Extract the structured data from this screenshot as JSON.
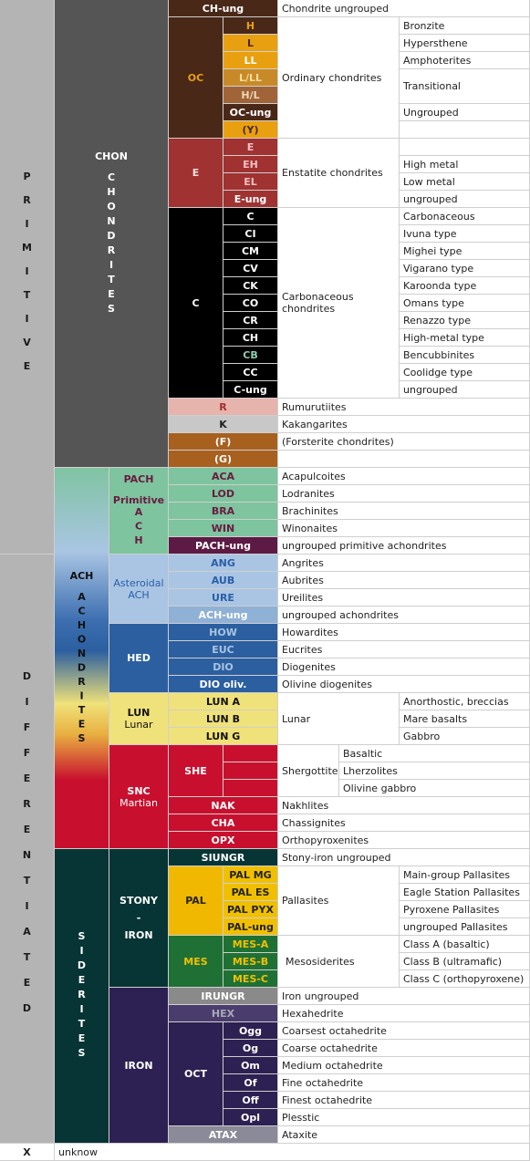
{
  "divisions": [
    {
      "name": "PRIMITIVE"
    },
    {
      "name": "DIFFERENTIATED"
    },
    {
      "code": "X",
      "name": "unknow"
    }
  ],
  "classes": [
    {
      "code": "CHON",
      "name": "CHONDRITES"
    },
    {
      "code": "ACH",
      "name": "ACHONDRITES"
    },
    {
      "name": "SIDERITES"
    }
  ],
  "clans": [
    {
      "code": "PACH",
      "name": "Primitive",
      "abbr": "ACH"
    },
    {
      "name": "Asteroidal",
      "abbr": "ACH"
    },
    {
      "code": "HED"
    },
    {
      "code": "LUN",
      "name": "Lunar"
    },
    {
      "code": "SNC",
      "name": "Martian"
    },
    {
      "code": "STONY",
      "sep": "-",
      "name": "IRON"
    },
    {
      "code": "IRON"
    }
  ],
  "groups": [
    {
      "code": "CH-ung",
      "name": "Chondrite ungrouped"
    },
    {
      "code": "OC",
      "name": "Ordinary chondrites",
      "types": [
        "H",
        "L",
        "LL",
        "L/LL",
        "H/L",
        "OC-ung",
        "(Y)"
      ],
      "descriptions": [
        "Bronzite",
        "Hypersthene",
        "Amphoterites",
        "Transitional",
        "Ungrouped"
      ]
    },
    {
      "code": "E",
      "name": "Enstatite chondrites",
      "types": [
        "E",
        "EH",
        "EL",
        "E-ung"
      ],
      "descriptions": [
        "High metal",
        "Low metal",
        "ungrouped"
      ]
    },
    {
      "code": "C",
      "name": "Carbonaceous chondrites",
      "types": [
        "C",
        "CI",
        "CM",
        "CV",
        "CK",
        "CO",
        "CR",
        "CH",
        "CB",
        "CC",
        "C-ung"
      ],
      "descriptions": [
        "Carbonaceous",
        "Ivuna type",
        "Mighei type",
        "Vigarano type",
        "Karoonda type",
        "Omans type",
        "Renazzo type",
        "High-metal type",
        "Bencubbinites",
        "Coolidge type",
        "ungrouped"
      ]
    },
    {
      "code": "R",
      "name": "Rumurutiites"
    },
    {
      "code": "K",
      "name": "Kakangarites"
    },
    {
      "code": "(F)",
      "name": "(Forsterite chondrites)"
    },
    {
      "code": "(G)"
    },
    {
      "code": "ACA",
      "name": "Acapulcoites"
    },
    {
      "code": "LOD",
      "name": "Lodranites"
    },
    {
      "code": "BRA",
      "name": "Brachinites"
    },
    {
      "code": "WIN",
      "name": "Winonaites"
    },
    {
      "code": "PACH-ung",
      "name": "ungrouped primitive achondrites"
    },
    {
      "code": "ANG",
      "name": "Angrites"
    },
    {
      "code": "AUB",
      "name": "Aubrites"
    },
    {
      "code": "URE",
      "name": "Ureilites"
    },
    {
      "code": "ACH-ung",
      "name": "ungrouped achondrites"
    },
    {
      "code": "HOW",
      "name": "Howardites"
    },
    {
      "code": "EUC",
      "name": "Eucrites"
    },
    {
      "code": "DIO",
      "name": "Diogenites"
    },
    {
      "code": "DIO oliv.",
      "name": "Olivine diogenites"
    },
    {
      "name": "Lunar",
      "types": [
        "LUN A",
        "LUN B",
        "LUN G"
      ],
      "descriptions": [
        "Anorthostic, breccias",
        "Mare basalts",
        "Gabbro"
      ]
    },
    {
      "code": "SHE",
      "name": "Shergottite",
      "descriptions": [
        "Basaltic",
        "Lherzolites",
        "Olivine gabbro"
      ]
    },
    {
      "code": "NAK",
      "name": "Nakhlites"
    },
    {
      "code": "CHA",
      "name": "Chassignites"
    },
    {
      "code": "OPX",
      "name": "Orthopyroxenites"
    },
    {
      "code": "SIUNGR",
      "name": "Stony-iron ungrouped"
    },
    {
      "code": "PAL",
      "name": "Pallasites",
      "types": [
        "PAL MG",
        "PAL ES",
        "PAL PYX",
        "PAL-ung"
      ],
      "descriptions": [
        "Main-group Pallasites",
        "Eagle Station Pallasites",
        "Pyroxene Pallasites",
        "ungrouped Pallasites"
      ]
    },
    {
      "code": "MES",
      "name": "Mesosiderites",
      "types": [
        "MES-A",
        "MES-B",
        "MES-C"
      ],
      "descriptions": [
        "Class A (basaltic)",
        "Class B (ultramafic)",
        "Class C (orthopyroxene)"
      ]
    },
    {
      "code": "IRUNGR",
      "name": "Iron ungrouped"
    },
    {
      "code": "HEX",
      "name": "Hexahedrite"
    },
    {
      "code": "OCT",
      "types": [
        "Ogg",
        "Og",
        "Om",
        "Of",
        "Off",
        "Opl"
      ],
      "descriptions": [
        "Coarsest octahedrite",
        "Coarse octahedrite",
        "Medium octahedrite",
        "Fine octahedrite",
        "Finest octahedrite",
        "Plesstic"
      ]
    },
    {
      "code": "ATAX",
      "name": "Ataxite"
    }
  ]
}
